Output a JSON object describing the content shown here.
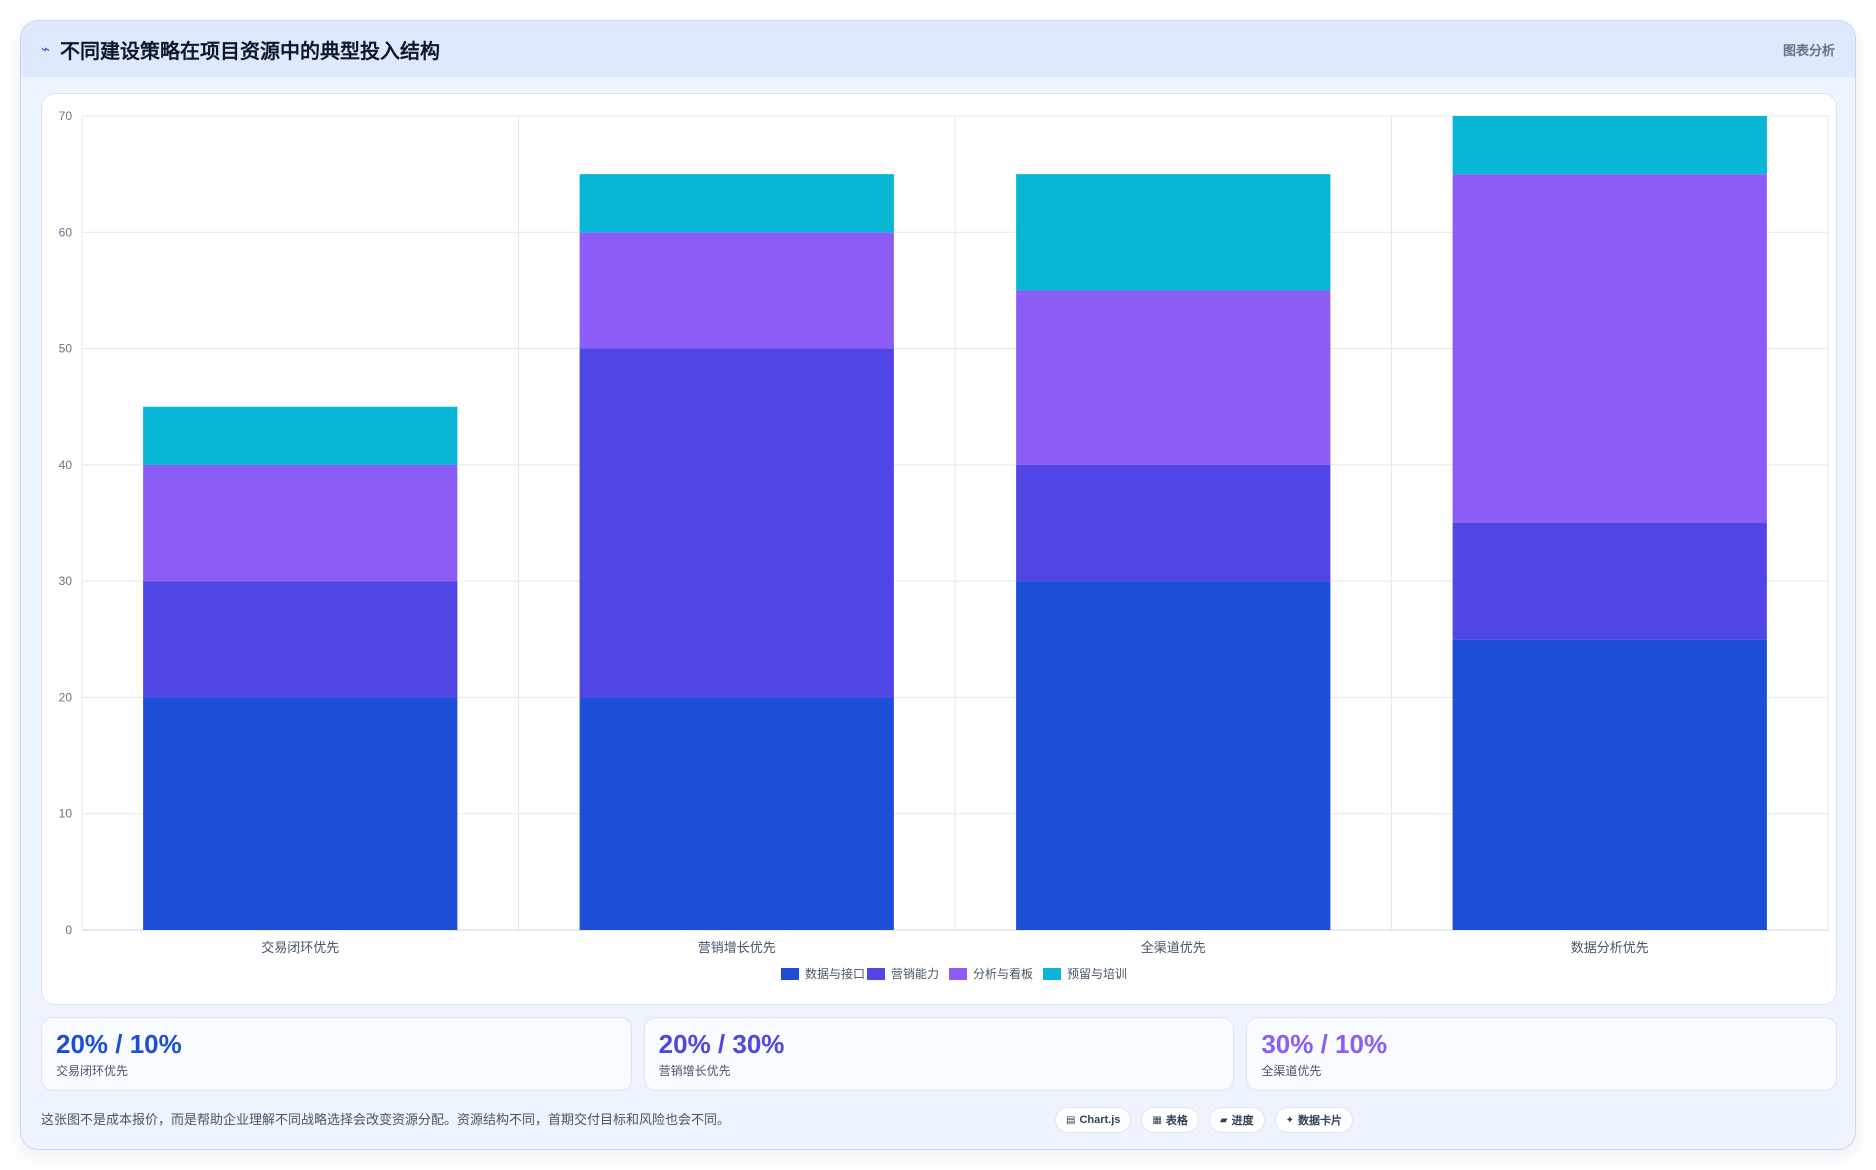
{
  "header": {
    "title": "不同建设策略在项目资源中的典型投入结构",
    "right_label": "图表分析"
  },
  "chart_data": {
    "type": "bar",
    "stacked": true,
    "categories": [
      "交易闭环优先",
      "营销增长优先",
      "全渠道优先",
      "数据分析优先"
    ],
    "series": [
      {
        "name": "数据与接口",
        "values": [
          20,
          20,
          30,
          25
        ],
        "color": "#1d4ed8"
      },
      {
        "name": "营销能力",
        "values": [
          10,
          30,
          10,
          10
        ],
        "color": "#4f46e5"
      },
      {
        "name": "分析与看板",
        "values": [
          10,
          10,
          15,
          30
        ],
        "color": "#8b5cf6"
      },
      {
        "name": "预留与培训",
        "values": [
          5,
          5,
          10,
          5
        ],
        "color": "#06b6d4"
      }
    ],
    "ylim": [
      0,
      70
    ],
    "yticks": [
      0,
      10,
      20,
      30,
      40,
      50,
      60,
      70
    ],
    "xlabel": "",
    "ylabel": "",
    "grid": true,
    "legend": "bottom-center"
  },
  "stats": [
    {
      "value": "20% / 10%",
      "label": "交易闭环优先",
      "color": "#1d4ed8"
    },
    {
      "value": "20% / 30%",
      "label": "营销增长优先",
      "color": "#4f46e5"
    },
    {
      "value": "30% / 10%",
      "label": "全渠道优先",
      "color": "#8b5cf6"
    }
  ],
  "footer": {
    "note": "这张图不是成本报价，而是帮助企业理解不同战略选择会改变资源分配。资源结构不同，首期交付目标和风险也会不同。",
    "chips": [
      {
        "icon": "▤",
        "label": "Chart.js"
      },
      {
        "icon": "▦",
        "label": "表格"
      },
      {
        "icon": "▰",
        "label": "进度"
      },
      {
        "icon": "✦",
        "label": "数据卡片"
      }
    ]
  }
}
